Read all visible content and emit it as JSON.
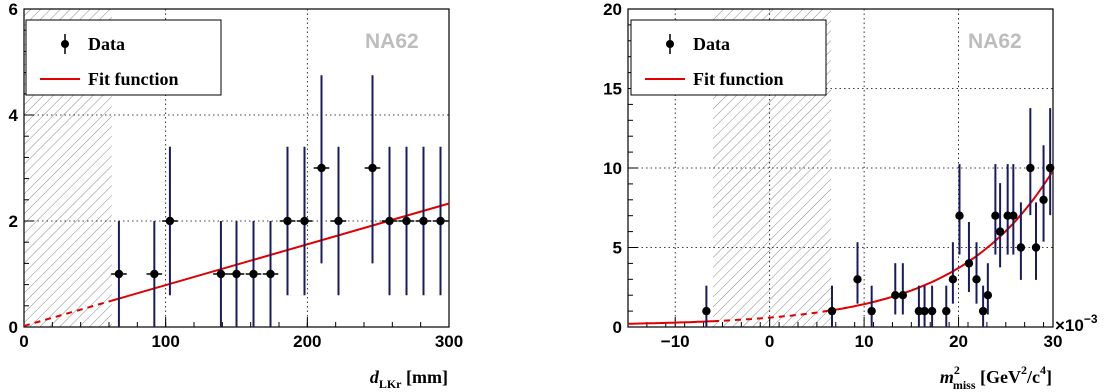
{
  "colors": {
    "data": "#000000",
    "error_bar": "#1a1a5e",
    "fit": "#e00000",
    "tag": "#bdbdbd",
    "hatch": "#8a8a8a"
  },
  "chart_data": [
    {
      "type": "scatter",
      "xlabel": "d",
      "xlabel_sub": "LKr",
      "xlabel_unit": " [mm]",
      "xlim": [
        0,
        300
      ],
      "ylim": [
        0,
        6
      ],
      "xticks": [
        "0",
        "100",
        "200",
        "300"
      ],
      "yticks": [
        "0",
        "2",
        "4",
        "6"
      ],
      "grid": true,
      "legend": [
        "Data",
        "Fit function"
      ],
      "experiment_tag": "NA62",
      "hatched_region": [
        0,
        62
      ],
      "series": [
        {
          "name": "Data",
          "x": [
            67,
            92,
            103,
            139,
            150,
            162,
            174,
            186,
            198,
            210,
            222,
            246,
            258,
            270,
            282,
            294
          ],
          "y": [
            1,
            1,
            2,
            1,
            1,
            1,
            1,
            2,
            2,
            3,
            2,
            3,
            2,
            2,
            2,
            2
          ],
          "xerr": 5.5,
          "yerr_low": [
            1,
            1,
            1.4,
            1,
            1,
            1,
            1,
            1.4,
            1.4,
            1.8,
            1.4,
            1.8,
            1.4,
            1.4,
            1.4,
            1.4
          ],
          "yerr_high": [
            1,
            1,
            1.4,
            1,
            1,
            1,
            1,
            1.4,
            1.4,
            1.75,
            1.4,
            1.75,
            1.4,
            1.4,
            1.4,
            1.4
          ]
        },
        {
          "name": "Fit function",
          "type": "line",
          "x": [
            0,
            300
          ],
          "y": [
            0.02,
            2.33
          ],
          "dashed_below": 62
        }
      ]
    },
    {
      "type": "scatter",
      "xlabel": "m",
      "xlabel_sup": "2",
      "xlabel_sub": "miss",
      "xlabel_unit": " [GeV",
      "xlabel_unit_sup1": "2",
      "xlabel_unit_mid": "/c",
      "xlabel_unit_sup2": "4",
      "xlabel_unit_end": "]",
      "x_multiplier": "×10",
      "x_multiplier_exp": "−3",
      "xlim": [
        -15,
        30
      ],
      "ylim": [
        0,
        20
      ],
      "xticks": [
        "−10",
        "0",
        "10",
        "20",
        "30"
      ],
      "yticks": [
        "0",
        "5",
        "10",
        "15",
        "20"
      ],
      "grid": true,
      "legend": [
        "Data",
        "Fit function"
      ],
      "experiment_tag": "NA62",
      "hatched_region": [
        -6,
        6.5
      ],
      "series": [
        {
          "name": "Data",
          "x": [
            -6.7,
            6.6,
            9.3,
            10.8,
            13.3,
            14.1,
            15.8,
            16.4,
            17.2,
            18.7,
            19.4,
            20.1,
            21.1,
            21.9,
            22.6,
            23.1,
            23.9,
            24.4,
            25.2,
            25.8,
            26.6,
            27.6,
            28.2,
            29.0,
            29.7
          ],
          "y": [
            1,
            1,
            3,
            1,
            2,
            2,
            1,
            1,
            1,
            1,
            3,
            7,
            4,
            3,
            1,
            2,
            7,
            6,
            7,
            7,
            5,
            10,
            5,
            8,
            10
          ],
          "xerr": 0.4
        },
        {
          "name": "Fit function",
          "type": "line",
          "dashed_between": [
            -6,
            6.5
          ]
        }
      ]
    }
  ]
}
